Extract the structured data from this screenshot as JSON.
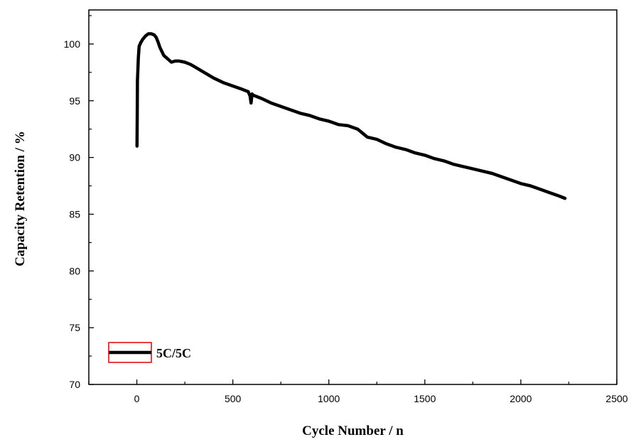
{
  "chart_data": {
    "type": "line",
    "title": "",
    "xlabel": "Cycle Number / n",
    "ylabel": "Capacity Retention / %",
    "xlim": [
      -250,
      2500
    ],
    "ylim": [
      70,
      103
    ],
    "x_ticks": [
      0,
      500,
      1000,
      1500,
      2000,
      2500
    ],
    "y_ticks": [
      70,
      75,
      80,
      85,
      90,
      95,
      100
    ],
    "grid": false,
    "legend_placement": "bottom-left",
    "legend_frame_color": "#e00000",
    "series": [
      {
        "name": "5C/5C",
        "color": "#000000",
        "x": [
          1,
          2,
          3,
          5,
          8,
          12,
          20,
          30,
          45,
          60,
          75,
          90,
          100,
          110,
          120,
          140,
          160,
          180,
          200,
          220,
          250,
          280,
          300,
          350,
          400,
          450,
          500,
          550,
          580,
          590,
          595,
          600,
          605,
          650,
          700,
          750,
          800,
          850,
          900,
          950,
          1000,
          1050,
          1100,
          1150,
          1200,
          1250,
          1300,
          1350,
          1400,
          1450,
          1500,
          1550,
          1600,
          1650,
          1700,
          1750,
          1800,
          1850,
          1900,
          1950,
          2000,
          2050,
          2100,
          2150,
          2200,
          2230
        ],
        "y": [
          91.0,
          93.5,
          96.8,
          97.5,
          98.8,
          99.8,
          100.1,
          100.4,
          100.7,
          100.9,
          100.9,
          100.8,
          100.6,
          100.2,
          99.7,
          99.0,
          98.7,
          98.4,
          98.5,
          98.5,
          98.4,
          98.2,
          98.0,
          97.5,
          97.0,
          96.6,
          96.3,
          96.0,
          95.8,
          95.4,
          94.8,
          95.6,
          95.5,
          95.2,
          94.8,
          94.5,
          94.2,
          93.9,
          93.7,
          93.4,
          93.2,
          92.9,
          92.8,
          92.5,
          91.8,
          91.6,
          91.2,
          90.9,
          90.7,
          90.4,
          90.2,
          89.9,
          89.7,
          89.4,
          89.2,
          89.0,
          88.8,
          88.6,
          88.3,
          88.0,
          87.7,
          87.5,
          87.2,
          86.9,
          86.6,
          86.4
        ]
      }
    ]
  }
}
